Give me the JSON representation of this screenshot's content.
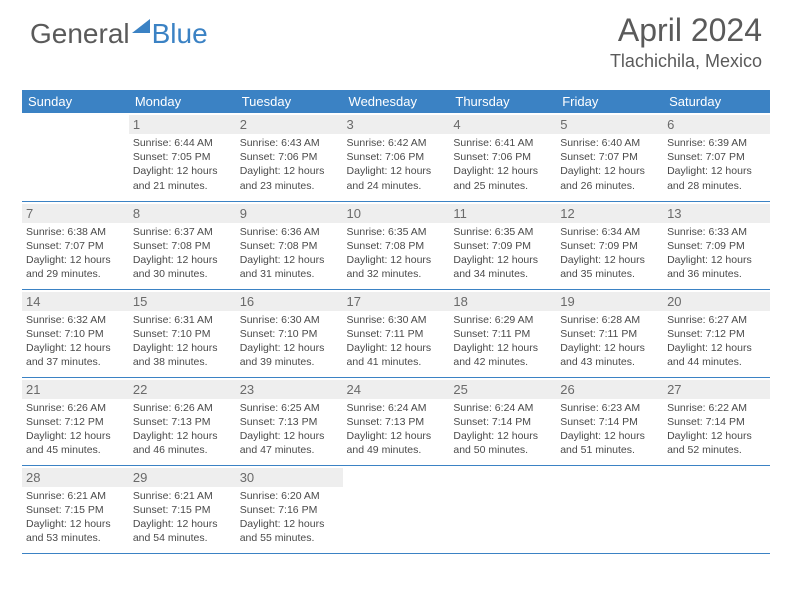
{
  "logo": {
    "word1": "General",
    "word2": "Blue"
  },
  "title": "April 2024",
  "location": "Tlachichila, Mexico",
  "colors": {
    "header_bg": "#3b82c4",
    "header_text": "#ffffff",
    "daynum_bg": "#eeeeee",
    "border": "#3b82c4",
    "text": "#4a4a4a"
  },
  "dayHeaders": [
    "Sunday",
    "Monday",
    "Tuesday",
    "Wednesday",
    "Thursday",
    "Friday",
    "Saturday"
  ],
  "weeks": [
    [
      null,
      {
        "n": "1",
        "sr": "Sunrise: 6:44 AM",
        "ss": "Sunset: 7:05 PM",
        "dl1": "Daylight: 12 hours",
        "dl2": "and 21 minutes."
      },
      {
        "n": "2",
        "sr": "Sunrise: 6:43 AM",
        "ss": "Sunset: 7:06 PM",
        "dl1": "Daylight: 12 hours",
        "dl2": "and 23 minutes."
      },
      {
        "n": "3",
        "sr": "Sunrise: 6:42 AM",
        "ss": "Sunset: 7:06 PM",
        "dl1": "Daylight: 12 hours",
        "dl2": "and 24 minutes."
      },
      {
        "n": "4",
        "sr": "Sunrise: 6:41 AM",
        "ss": "Sunset: 7:06 PM",
        "dl1": "Daylight: 12 hours",
        "dl2": "and 25 minutes."
      },
      {
        "n": "5",
        "sr": "Sunrise: 6:40 AM",
        "ss": "Sunset: 7:07 PM",
        "dl1": "Daylight: 12 hours",
        "dl2": "and 26 minutes."
      },
      {
        "n": "6",
        "sr": "Sunrise: 6:39 AM",
        "ss": "Sunset: 7:07 PM",
        "dl1": "Daylight: 12 hours",
        "dl2": "and 28 minutes."
      }
    ],
    [
      {
        "n": "7",
        "sr": "Sunrise: 6:38 AM",
        "ss": "Sunset: 7:07 PM",
        "dl1": "Daylight: 12 hours",
        "dl2": "and 29 minutes."
      },
      {
        "n": "8",
        "sr": "Sunrise: 6:37 AM",
        "ss": "Sunset: 7:08 PM",
        "dl1": "Daylight: 12 hours",
        "dl2": "and 30 minutes."
      },
      {
        "n": "9",
        "sr": "Sunrise: 6:36 AM",
        "ss": "Sunset: 7:08 PM",
        "dl1": "Daylight: 12 hours",
        "dl2": "and 31 minutes."
      },
      {
        "n": "10",
        "sr": "Sunrise: 6:35 AM",
        "ss": "Sunset: 7:08 PM",
        "dl1": "Daylight: 12 hours",
        "dl2": "and 32 minutes."
      },
      {
        "n": "11",
        "sr": "Sunrise: 6:35 AM",
        "ss": "Sunset: 7:09 PM",
        "dl1": "Daylight: 12 hours",
        "dl2": "and 34 minutes."
      },
      {
        "n": "12",
        "sr": "Sunrise: 6:34 AM",
        "ss": "Sunset: 7:09 PM",
        "dl1": "Daylight: 12 hours",
        "dl2": "and 35 minutes."
      },
      {
        "n": "13",
        "sr": "Sunrise: 6:33 AM",
        "ss": "Sunset: 7:09 PM",
        "dl1": "Daylight: 12 hours",
        "dl2": "and 36 minutes."
      }
    ],
    [
      {
        "n": "14",
        "sr": "Sunrise: 6:32 AM",
        "ss": "Sunset: 7:10 PM",
        "dl1": "Daylight: 12 hours",
        "dl2": "and 37 minutes."
      },
      {
        "n": "15",
        "sr": "Sunrise: 6:31 AM",
        "ss": "Sunset: 7:10 PM",
        "dl1": "Daylight: 12 hours",
        "dl2": "and 38 minutes."
      },
      {
        "n": "16",
        "sr": "Sunrise: 6:30 AM",
        "ss": "Sunset: 7:10 PM",
        "dl1": "Daylight: 12 hours",
        "dl2": "and 39 minutes."
      },
      {
        "n": "17",
        "sr": "Sunrise: 6:30 AM",
        "ss": "Sunset: 7:11 PM",
        "dl1": "Daylight: 12 hours",
        "dl2": "and 41 minutes."
      },
      {
        "n": "18",
        "sr": "Sunrise: 6:29 AM",
        "ss": "Sunset: 7:11 PM",
        "dl1": "Daylight: 12 hours",
        "dl2": "and 42 minutes."
      },
      {
        "n": "19",
        "sr": "Sunrise: 6:28 AM",
        "ss": "Sunset: 7:11 PM",
        "dl1": "Daylight: 12 hours",
        "dl2": "and 43 minutes."
      },
      {
        "n": "20",
        "sr": "Sunrise: 6:27 AM",
        "ss": "Sunset: 7:12 PM",
        "dl1": "Daylight: 12 hours",
        "dl2": "and 44 minutes."
      }
    ],
    [
      {
        "n": "21",
        "sr": "Sunrise: 6:26 AM",
        "ss": "Sunset: 7:12 PM",
        "dl1": "Daylight: 12 hours",
        "dl2": "and 45 minutes."
      },
      {
        "n": "22",
        "sr": "Sunrise: 6:26 AM",
        "ss": "Sunset: 7:13 PM",
        "dl1": "Daylight: 12 hours",
        "dl2": "and 46 minutes."
      },
      {
        "n": "23",
        "sr": "Sunrise: 6:25 AM",
        "ss": "Sunset: 7:13 PM",
        "dl1": "Daylight: 12 hours",
        "dl2": "and 47 minutes."
      },
      {
        "n": "24",
        "sr": "Sunrise: 6:24 AM",
        "ss": "Sunset: 7:13 PM",
        "dl1": "Daylight: 12 hours",
        "dl2": "and 49 minutes."
      },
      {
        "n": "25",
        "sr": "Sunrise: 6:24 AM",
        "ss": "Sunset: 7:14 PM",
        "dl1": "Daylight: 12 hours",
        "dl2": "and 50 minutes."
      },
      {
        "n": "26",
        "sr": "Sunrise: 6:23 AM",
        "ss": "Sunset: 7:14 PM",
        "dl1": "Daylight: 12 hours",
        "dl2": "and 51 minutes."
      },
      {
        "n": "27",
        "sr": "Sunrise: 6:22 AM",
        "ss": "Sunset: 7:14 PM",
        "dl1": "Daylight: 12 hours",
        "dl2": "and 52 minutes."
      }
    ],
    [
      {
        "n": "28",
        "sr": "Sunrise: 6:21 AM",
        "ss": "Sunset: 7:15 PM",
        "dl1": "Daylight: 12 hours",
        "dl2": "and 53 minutes."
      },
      {
        "n": "29",
        "sr": "Sunrise: 6:21 AM",
        "ss": "Sunset: 7:15 PM",
        "dl1": "Daylight: 12 hours",
        "dl2": "and 54 minutes."
      },
      {
        "n": "30",
        "sr": "Sunrise: 6:20 AM",
        "ss": "Sunset: 7:16 PM",
        "dl1": "Daylight: 12 hours",
        "dl2": "and 55 minutes."
      },
      null,
      null,
      null,
      null
    ]
  ]
}
